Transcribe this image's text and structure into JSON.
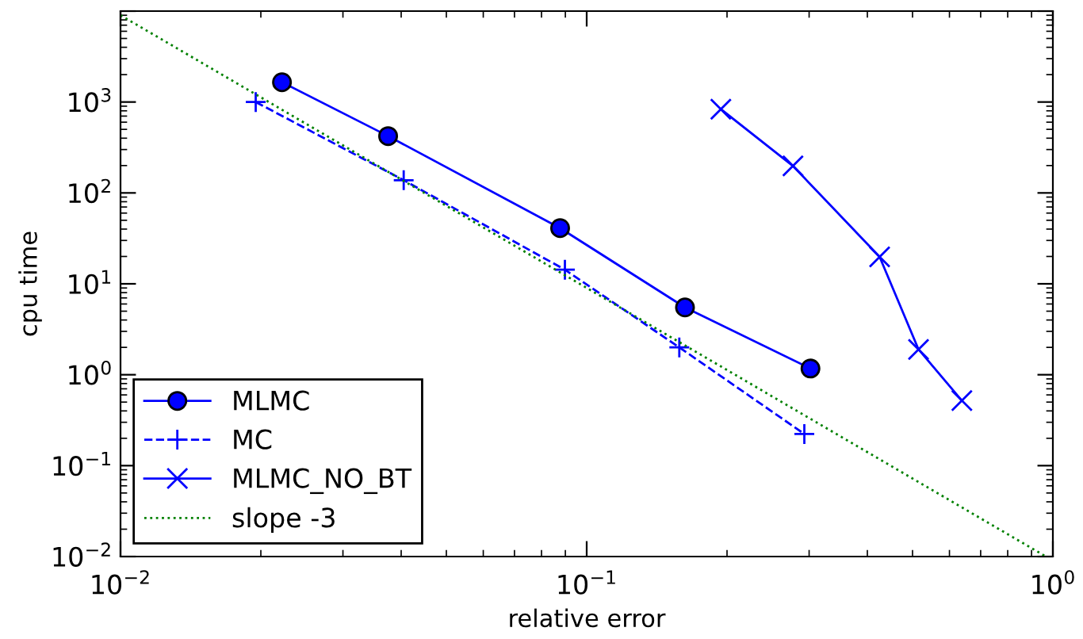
{
  "chart_data": {
    "type": "line",
    "xlabel": "relative error",
    "ylabel": "cpu time",
    "log": "xy",
    "grid": false,
    "legend": "bottom left",
    "xlim": [
      0.01,
      1
    ],
    "ylim": [
      0.01,
      10000
    ],
    "xticks": [
      {
        "value": 0.01,
        "label": "10$^{−2}$"
      },
      {
        "value": 0.1,
        "label": "10$^{−1}$"
      },
      {
        "value": 1,
        "label": "10$^{0}$"
      }
    ],
    "yticks": [
      {
        "value": 0.01,
        "label": "10$^{−2}$"
      },
      {
        "value": 0.1,
        "label": "10$^{−1}$"
      },
      {
        "value": 1,
        "label": "10$^{0}$"
      },
      {
        "value": 10,
        "label": "10$^{1}$"
      },
      {
        "value": 100,
        "label": "10$^{2}$"
      },
      {
        "value": 1000,
        "label": "10$^{3}$"
      },
      {
        "value": 10000,
        "label": null
      }
    ],
    "series": [
      {
        "name": "MLMC",
        "color": "#0000ff",
        "marker": "circle",
        "line_style": "solid",
        "x": [
          0.0222,
          0.0375,
          0.0877,
          0.1625,
          0.302
        ],
        "values": [
          1650,
          422,
          41,
          5.5,
          1.17
        ]
      },
      {
        "name": "MC",
        "color": "#0000ff",
        "marker": "plus",
        "line_style": "dashed",
        "x": [
          0.0195,
          0.0405,
          0.0898,
          0.158,
          0.293
        ],
        "values": [
          1000,
          138,
          14.3,
          2.0,
          0.223
        ]
      },
      {
        "name": "MLMC_NO_BT",
        "color": "#0000ff",
        "marker": "cross",
        "line_style": "solid",
        "x": [
          0.194,
          0.277,
          0.425,
          0.515,
          0.638
        ],
        "values": [
          835,
          198,
          19.8,
          1.9,
          0.52
        ]
      },
      {
        "name": "slope -3",
        "color": "#008000",
        "marker": "none",
        "line_style": "dotted",
        "x": [
          0.01,
          0.96
        ],
        "values": [
          9000,
          0.0102
        ]
      }
    ]
  }
}
